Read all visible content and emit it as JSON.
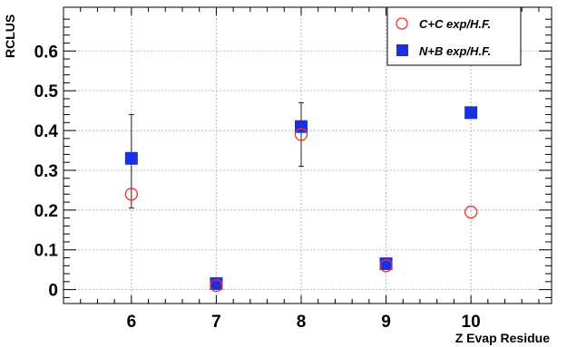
{
  "chart_data": {
    "type": "scatter",
    "xlabel": "Z Evap Residue",
    "ylabel": "RCLUS",
    "xlim": [
      5.2,
      10.95
    ],
    "ylim": [
      -0.035,
      0.71
    ],
    "x_ticks": [
      6,
      7,
      8,
      9,
      10
    ],
    "y_ticks": [
      0,
      0.1,
      0.2,
      0.3,
      0.4,
      0.5,
      0.6
    ],
    "x_tick_labels": [
      "6",
      "7",
      "8",
      "9",
      "10"
    ],
    "y_tick_labels": [
      "0",
      "0.1",
      "0.2",
      "0.3",
      "0.4",
      "0.5",
      "0.6"
    ],
    "grid": true,
    "legend_position": "top-right",
    "series": [
      {
        "name": "C+C exp/H.F.",
        "marker": "open-circle",
        "color": "#e8322a",
        "x": [
          6,
          7,
          8,
          9,
          10
        ],
        "y": [
          0.24,
          0.01,
          0.39,
          0.06,
          0.195
        ],
        "error_low": [
          0.205,
          null,
          0.31,
          null,
          null
        ],
        "error_high": [
          0.44,
          null,
          0.47,
          null,
          null
        ]
      },
      {
        "name": "N+B exp/H.F.",
        "marker": "filled-square",
        "color": "#1a2fe0",
        "x": [
          6,
          7,
          8,
          9,
          10
        ],
        "y": [
          0.33,
          0.015,
          0.41,
          0.065,
          0.445
        ]
      }
    ]
  }
}
